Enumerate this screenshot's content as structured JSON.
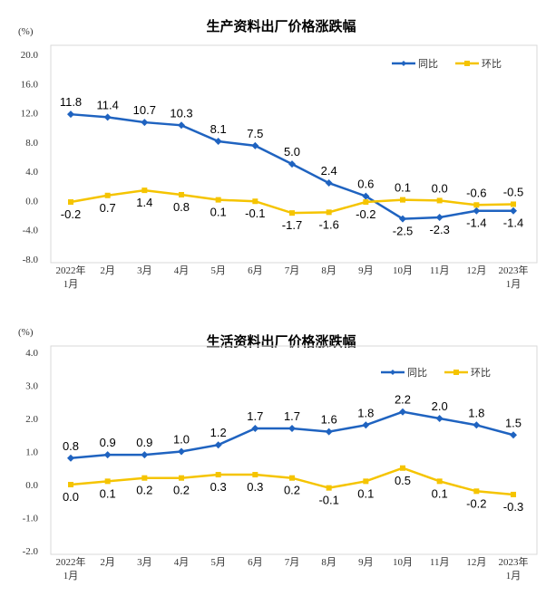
{
  "colors": {
    "yoy": "#1f63c0",
    "mom": "#f5c400"
  },
  "chart_data": [
    {
      "type": "line",
      "title": "生产资料出厂价格涨跌幅",
      "ylabel": "(%)",
      "ylim": [
        -8,
        20
      ],
      "yticks": [
        "20.0",
        "16.0",
        "12.0",
        "8.0",
        "4.0",
        "0.0",
        "-4.0",
        "-8.0"
      ],
      "ytick_values": [
        20,
        16,
        12,
        8,
        4,
        0,
        -4,
        -8
      ],
      "categories": [
        [
          "2022年",
          "1月"
        ],
        [
          "2月"
        ],
        [
          "3月"
        ],
        [
          "4月"
        ],
        [
          "5月"
        ],
        [
          "6月"
        ],
        [
          "7月"
        ],
        [
          "8月"
        ],
        [
          "9月"
        ],
        [
          "10月"
        ],
        [
          "11月"
        ],
        [
          "12月"
        ],
        [
          "2023年",
          "1月"
        ]
      ],
      "legend_position": "top-right",
      "grid": false,
      "series": [
        {
          "name": "同比",
          "values": [
            11.8,
            11.4,
            10.7,
            10.3,
            8.1,
            7.5,
            5.0,
            2.4,
            0.6,
            -2.5,
            -2.3,
            -1.4,
            -1.4
          ],
          "labels": [
            "11.8",
            "11.4",
            "10.7",
            "10.3",
            "8.1",
            "7.5",
            "5.0",
            "2.4",
            "0.6",
            "-2.5",
            "-2.3",
            "-1.4",
            "-1.4"
          ],
          "marker": "diamond"
        },
        {
          "name": "环比",
          "values": [
            -0.2,
            0.7,
            1.4,
            0.8,
            0.1,
            -0.1,
            -1.7,
            -1.6,
            -0.2,
            0.1,
            0.0,
            -0.6,
            -0.5
          ],
          "labels": [
            "-0.2",
            "0.7",
            "1.4",
            "0.8",
            "0.1",
            "-0.1",
            "-1.7",
            "-1.6",
            "-0.2",
            "0.1",
            "0.0",
            "-0.6",
            "-0.5"
          ],
          "marker": "square"
        }
      ]
    },
    {
      "type": "line",
      "title": "生活资料出厂价格涨跌幅",
      "ylabel": "(%)",
      "ylim": [
        -2,
        4
      ],
      "yticks": [
        "4.0",
        "3.0",
        "2.0",
        "1.0",
        "0.0",
        "-1.0",
        "-2.0"
      ],
      "ytick_values": [
        4,
        3,
        2,
        1,
        0,
        -1,
        -2
      ],
      "categories": [
        [
          "2022年",
          "1月"
        ],
        [
          "2月"
        ],
        [
          "3月"
        ],
        [
          "4月"
        ],
        [
          "5月"
        ],
        [
          "6月"
        ],
        [
          "7月"
        ],
        [
          "8月"
        ],
        [
          "9月"
        ],
        [
          "10月"
        ],
        [
          "11月"
        ],
        [
          "12月"
        ],
        [
          "2023年",
          "1月"
        ]
      ],
      "legend_position": "top-right",
      "grid": false,
      "series": [
        {
          "name": "同比",
          "values": [
            0.8,
            0.9,
            0.9,
            1.0,
            1.2,
            1.7,
            1.7,
            1.6,
            1.8,
            2.2,
            2.0,
            1.8,
            1.5
          ],
          "labels": [
            "0.8",
            "0.9",
            "0.9",
            "1.0",
            "1.2",
            "1.7",
            "1.7",
            "1.6",
            "1.8",
            "2.2",
            "2.0",
            "1.8",
            "1.5"
          ],
          "marker": "diamond"
        },
        {
          "name": "环比",
          "values": [
            0.0,
            0.1,
            0.2,
            0.2,
            0.3,
            0.3,
            0.2,
            -0.1,
            0.1,
            0.5,
            0.1,
            -0.2,
            -0.3
          ],
          "labels": [
            "0.0",
            "0.1",
            "0.2",
            "0.2",
            "0.3",
            "0.3",
            "0.2",
            "-0.1",
            "0.1",
            "0.5",
            "0.1",
            "-0.2",
            "-0.3"
          ],
          "marker": "square"
        }
      ]
    }
  ]
}
